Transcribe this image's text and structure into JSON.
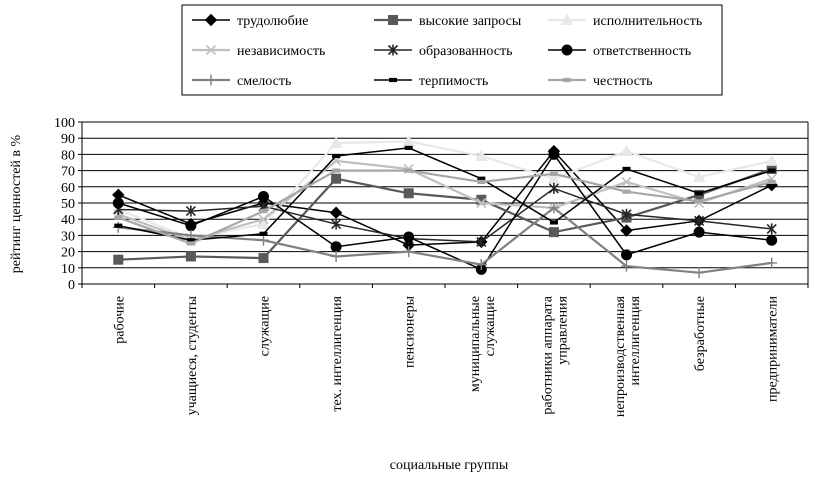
{
  "chart_data": {
    "type": "line",
    "title": "",
    "xlabel": "социальные группы",
    "ylabel": "рейтинг ценностей в %",
    "ylim": [
      0,
      100
    ],
    "yticks": [
      0,
      10,
      20,
      30,
      40,
      50,
      60,
      70,
      80,
      90,
      100
    ],
    "grid": true,
    "legend_position": "top",
    "categories": [
      "рабочие",
      "учащиеся, студенты",
      "служащие",
      "тех. интеллигенция",
      "пенсионеры",
      "муниципальные служащие",
      "работники аппарата управления",
      "непроизводственная интеллигенция",
      "безработные",
      "предприниматели"
    ],
    "series": [
      {
        "name": "трудолюбие",
        "color": "#000000",
        "marker": "diamond",
        "values": [
          55,
          37,
          50,
          44,
          24,
          26,
          82,
          33,
          39,
          61
        ]
      },
      {
        "name": "высокие запросы",
        "color": "#595959",
        "marker": "square",
        "values": [
          15,
          17,
          16,
          65,
          56,
          52,
          32,
          41,
          55,
          71
        ]
      },
      {
        "name": "исполнительность",
        "color": "#e8e8e8",
        "marker": "triangle",
        "values": [
          46,
          28,
          37,
          87,
          88,
          79,
          65,
          82,
          66,
          76
        ]
      },
      {
        "name": "независимость",
        "color": "#bfbfbf",
        "marker": "x",
        "values": [
          43,
          27,
          40,
          76,
          71,
          50,
          47,
          63,
          50,
          65
        ]
      },
      {
        "name": "образованность",
        "color": "#262626",
        "marker": "star",
        "values": [
          46,
          45,
          48,
          37,
          28,
          26,
          59,
          43,
          39,
          34
        ]
      },
      {
        "name": "ответственность",
        "color": "#000000",
        "marker": "circle",
        "values": [
          50,
          36,
          54,
          23,
          29,
          9,
          80,
          18,
          32,
          27
        ]
      },
      {
        "name": "смелость",
        "color": "#808080",
        "marker": "plus",
        "values": [
          35,
          30,
          27,
          17,
          20,
          12,
          47,
          11,
          7,
          13
        ]
      },
      {
        "name": "терпимость",
        "color": "#000000",
        "marker": "dash",
        "values": [
          36,
          27,
          31,
          79,
          84,
          65,
          38,
          71,
          56,
          70
        ]
      },
      {
        "name": "честность",
        "color": "#a6a6a6",
        "marker": "dash",
        "values": [
          41,
          25,
          45,
          70,
          70,
          63,
          68,
          57,
          51,
          63
        ]
      }
    ]
  }
}
